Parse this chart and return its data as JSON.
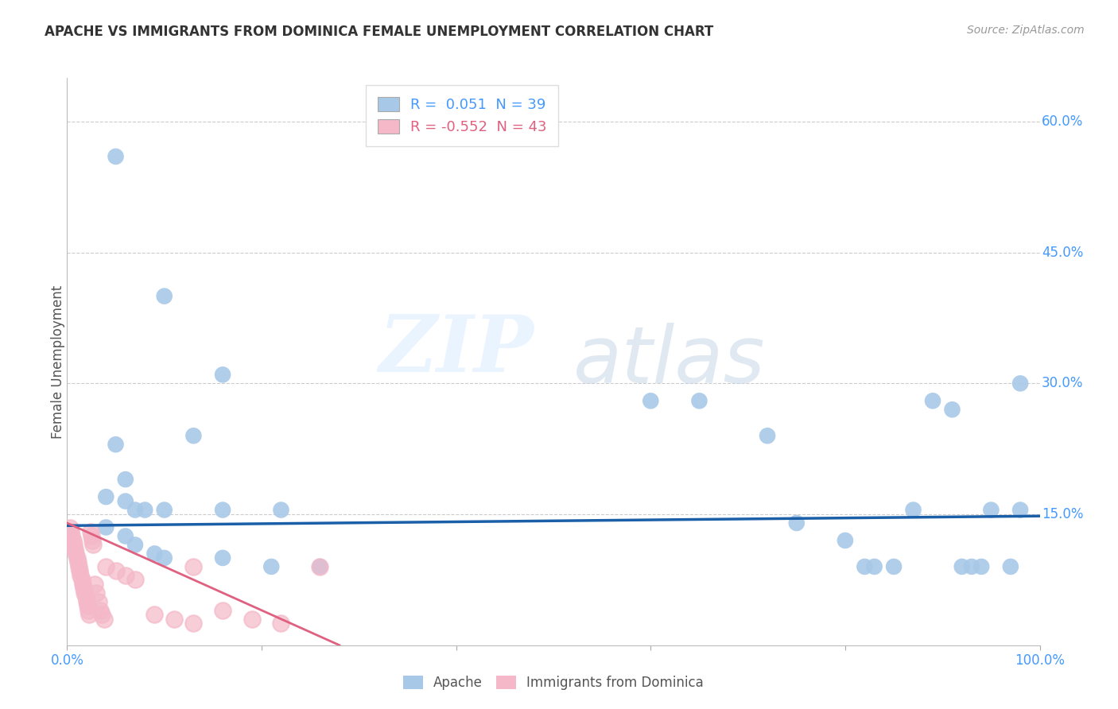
{
  "title": "APACHE VS IMMIGRANTS FROM DOMINICA FEMALE UNEMPLOYMENT CORRELATION CHART",
  "source": "Source: ZipAtlas.com",
  "ylabel": "Female Unemployment",
  "xlim": [
    0.0,
    1.0
  ],
  "ylim": [
    0.0,
    0.65
  ],
  "xticks": [
    0.0,
    0.2,
    0.4,
    0.6,
    0.8,
    1.0
  ],
  "xticklabels": [
    "0.0%",
    "",
    "",
    "",
    "",
    "100.0%"
  ],
  "yticks": [
    0.15,
    0.3,
    0.45,
    0.6
  ],
  "yticklabels": [
    "15.0%",
    "30.0%",
    "45.0%",
    "60.0%"
  ],
  "watermark_zip": "ZIP",
  "watermark_atlas": "atlas",
  "apache_color": "#a8c8e8",
  "dominica_color": "#f4b8c8",
  "apache_line_color": "#1a5fa8",
  "dominica_line_color": "#e06080",
  "apache_R": 0.051,
  "apache_N": 39,
  "dominica_R": -0.552,
  "dominica_N": 43,
  "apache_points": [
    [
      0.05,
      0.56
    ],
    [
      0.1,
      0.4
    ],
    [
      0.16,
      0.31
    ],
    [
      0.05,
      0.23
    ],
    [
      0.06,
      0.19
    ],
    [
      0.04,
      0.17
    ],
    [
      0.06,
      0.165
    ],
    [
      0.07,
      0.155
    ],
    [
      0.08,
      0.155
    ],
    [
      0.1,
      0.155
    ],
    [
      0.13,
      0.24
    ],
    [
      0.16,
      0.155
    ],
    [
      0.22,
      0.155
    ],
    [
      0.04,
      0.135
    ],
    [
      0.06,
      0.125
    ],
    [
      0.07,
      0.115
    ],
    [
      0.09,
      0.105
    ],
    [
      0.1,
      0.1
    ],
    [
      0.16,
      0.1
    ],
    [
      0.21,
      0.09
    ],
    [
      0.26,
      0.09
    ],
    [
      0.6,
      0.28
    ],
    [
      0.65,
      0.28
    ],
    [
      0.72,
      0.24
    ],
    [
      0.75,
      0.14
    ],
    [
      0.8,
      0.12
    ],
    [
      0.82,
      0.09
    ],
    [
      0.83,
      0.09
    ],
    [
      0.85,
      0.09
    ],
    [
      0.87,
      0.155
    ],
    [
      0.89,
      0.28
    ],
    [
      0.91,
      0.27
    ],
    [
      0.92,
      0.09
    ],
    [
      0.93,
      0.09
    ],
    [
      0.94,
      0.09
    ],
    [
      0.95,
      0.155
    ],
    [
      0.97,
      0.09
    ],
    [
      0.98,
      0.3
    ],
    [
      0.98,
      0.155
    ]
  ],
  "dominica_points": [
    [
      0.003,
      0.135
    ],
    [
      0.004,
      0.13
    ],
    [
      0.005,
      0.125
    ],
    [
      0.006,
      0.12
    ],
    [
      0.007,
      0.115
    ],
    [
      0.008,
      0.11
    ],
    [
      0.009,
      0.105
    ],
    [
      0.01,
      0.1
    ],
    [
      0.011,
      0.095
    ],
    [
      0.012,
      0.09
    ],
    [
      0.013,
      0.085
    ],
    [
      0.014,
      0.08
    ],
    [
      0.015,
      0.075
    ],
    [
      0.016,
      0.07
    ],
    [
      0.017,
      0.065
    ],
    [
      0.018,
      0.06
    ],
    [
      0.019,
      0.055
    ],
    [
      0.02,
      0.05
    ],
    [
      0.021,
      0.045
    ],
    [
      0.022,
      0.04
    ],
    [
      0.023,
      0.035
    ],
    [
      0.024,
      0.13
    ],
    [
      0.025,
      0.125
    ],
    [
      0.026,
      0.12
    ],
    [
      0.027,
      0.115
    ],
    [
      0.028,
      0.07
    ],
    [
      0.03,
      0.06
    ],
    [
      0.032,
      0.05
    ],
    [
      0.034,
      0.04
    ],
    [
      0.036,
      0.035
    ],
    [
      0.038,
      0.03
    ],
    [
      0.04,
      0.09
    ],
    [
      0.05,
      0.085
    ],
    [
      0.06,
      0.08
    ],
    [
      0.07,
      0.075
    ],
    [
      0.09,
      0.035
    ],
    [
      0.11,
      0.03
    ],
    [
      0.13,
      0.025
    ],
    [
      0.16,
      0.04
    ],
    [
      0.19,
      0.03
    ],
    [
      0.22,
      0.025
    ],
    [
      0.26,
      0.09
    ],
    [
      0.13,
      0.09
    ]
  ],
  "apache_line_x": [
    0.0,
    1.0
  ],
  "apache_line_y": [
    0.137,
    0.148
  ],
  "dominica_line_x": [
    0.0,
    0.28
  ],
  "dominica_line_y": [
    0.14,
    0.0
  ]
}
